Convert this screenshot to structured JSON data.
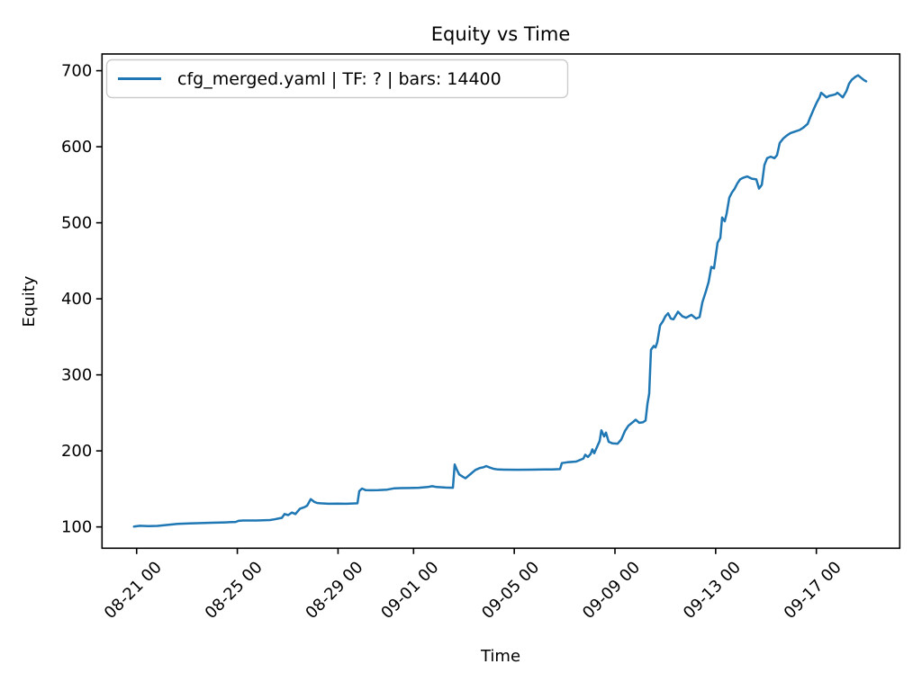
{
  "chart_data": {
    "type": "line",
    "title": "Equity vs Time",
    "xlabel": "Time",
    "ylabel": "Equity",
    "grid": false,
    "legend_position": "upper left",
    "x_ticks": [
      "08-21 00",
      "08-25 00",
      "08-29 00",
      "09-01 00",
      "09-05 00",
      "09-09 00",
      "09-13 00",
      "09-17 00"
    ],
    "y_ticks": [
      100,
      200,
      300,
      400,
      500,
      600,
      700
    ],
    "xlim": [
      "08-19 15:00",
      "09-20 07:30"
    ],
    "ylim": [
      72,
      722
    ],
    "series": [
      {
        "name": "cfg_merged.yaml | TF: ? | bars: 14400",
        "color": "#1f77b4",
        "points": [
          [
            "08-20 21:30",
            100.5
          ],
          [
            "08-21 03:00",
            101.5
          ],
          [
            "08-21 11:30",
            101.0
          ],
          [
            "08-21 20:00",
            101.3
          ],
          [
            "08-22 15:00",
            104.0
          ],
          [
            "08-23 02:00",
            104.5
          ],
          [
            "08-23 13:00",
            105.0
          ],
          [
            "08-23 23:30",
            105.5
          ],
          [
            "08-24 12:30",
            106.0
          ],
          [
            "08-24 22:30",
            106.5
          ],
          [
            "08-25 01:00",
            108.0
          ],
          [
            "08-25 05:30",
            108.5
          ],
          [
            "08-25 18:30",
            108.5
          ],
          [
            "08-26 07:15",
            109.0
          ],
          [
            "08-26 11:30",
            110.0
          ],
          [
            "08-26 18:30",
            112.0
          ],
          [
            "08-26 21:00",
            117.0
          ],
          [
            "08-27 00:30",
            115.5
          ],
          [
            "08-27 04:00",
            119.0
          ],
          [
            "08-27 07:20",
            117.0
          ],
          [
            "08-27 11:40",
            124.0
          ],
          [
            "08-27 16:00",
            126.0
          ],
          [
            "08-27 18:30",
            128.0
          ],
          [
            "08-27 22:00",
            136.5
          ],
          [
            "08-28 01:20",
            133.0
          ],
          [
            "08-28 04:00",
            131.5
          ],
          [
            "08-28 07:20",
            131.0
          ],
          [
            "08-28 15:00",
            130.5
          ],
          [
            "08-28 23:40",
            130.7
          ],
          [
            "08-29 08:15",
            130.5
          ],
          [
            "08-29 18:30",
            131.0
          ],
          [
            "08-29 20:15",
            147.0
          ],
          [
            "08-29 22:50",
            150.5
          ],
          [
            "08-30 02:15",
            148.5
          ],
          [
            "08-30 07:30",
            148.2
          ],
          [
            "08-30 14:15",
            148.5
          ],
          [
            "08-30 22:50",
            149.0
          ],
          [
            "08-31 05:45",
            150.8
          ],
          [
            "08-31 11:45",
            151.0
          ],
          [
            "08-31 20:20",
            151.2
          ],
          [
            "09-01 05:00",
            151.5
          ],
          [
            "09-01 13:30",
            152.5
          ],
          [
            "09-01 17:45",
            153.5
          ],
          [
            "09-01 22:00",
            152.5
          ],
          [
            "09-02 06:40",
            151.8
          ],
          [
            "09-02 13:30",
            151.5
          ],
          [
            "09-02 15:15",
            182.0
          ],
          [
            "09-02 17:00",
            176.0
          ],
          [
            "09-02 19:30",
            169.0
          ],
          [
            "09-02 23:00",
            166.0
          ],
          [
            "09-03 01:30",
            164.0
          ],
          [
            "09-03 06:40",
            170.0
          ],
          [
            "09-03 11:00",
            175.0
          ],
          [
            "09-03 15:15",
            177.5
          ],
          [
            "09-03 18:40",
            178.5
          ],
          [
            "09-03 21:15",
            180.0
          ],
          [
            "09-04 00:45",
            178.0
          ],
          [
            "09-04 04:10",
            176.5
          ],
          [
            "09-04 08:25",
            175.5
          ],
          [
            "09-04 14:25",
            175.3
          ],
          [
            "09-05 03:20",
            175.2
          ],
          [
            "09-05 16:10",
            175.3
          ],
          [
            "09-06 05:00",
            175.5
          ],
          [
            "09-06 12:00",
            175.5
          ],
          [
            "09-06 19:40",
            176.0
          ],
          [
            "09-06 21:20",
            184.0
          ],
          [
            "09-07 02:30",
            185.0
          ],
          [
            "09-07 11:00",
            186.0
          ],
          [
            "09-07 18:00",
            190.0
          ],
          [
            "09-07 19:40",
            195.0
          ],
          [
            "09-07 22:15",
            192.0
          ],
          [
            "09-08 00:50",
            196.0
          ],
          [
            "09-08 02:30",
            202.0
          ],
          [
            "09-08 04:15",
            197.0
          ],
          [
            "09-08 06:50",
            205.0
          ],
          [
            "09-08 09:25",
            213.0
          ],
          [
            "09-08 11:05",
            227.0
          ],
          [
            "09-08 13:40",
            219.0
          ],
          [
            "09-08 15:25",
            224.0
          ],
          [
            "09-08 18:00",
            212.0
          ],
          [
            "09-08 21:25",
            210.0
          ],
          [
            "09-09 02:35",
            209.5
          ],
          [
            "09-09 06:00",
            215.0
          ],
          [
            "09-09 09:25",
            226.0
          ],
          [
            "09-09 12:50",
            233.0
          ],
          [
            "09-09 16:20",
            237.0
          ],
          [
            "09-09 19:45",
            241.0
          ],
          [
            "09-09 23:10",
            237.0
          ],
          [
            "09-10 02:35",
            237.5
          ],
          [
            "09-10 05:10",
            240.0
          ],
          [
            "09-10 07:00",
            262.0
          ],
          [
            "09-10 08:35",
            275.0
          ],
          [
            "09-10 10:20",
            333.0
          ],
          [
            "09-10 13:00",
            338.0
          ],
          [
            "09-10 14:40",
            336.0
          ],
          [
            "09-10 16:20",
            343.0
          ],
          [
            "09-10 19:00",
            365.0
          ],
          [
            "09-10 21:30",
            370.0
          ],
          [
            "09-11 00:05",
            377.0
          ],
          [
            "09-11 02:40",
            381.0
          ],
          [
            "09-11 05:15",
            374.0
          ],
          [
            "09-11 07:50",
            373.0
          ],
          [
            "09-11 12:05",
            383.0
          ],
          [
            "09-11 16:20",
            377.0
          ],
          [
            "09-11 19:50",
            375.0
          ],
          [
            "09-12 01:00",
            379.0
          ],
          [
            "09-12 05:15",
            374.0
          ],
          [
            "09-12 08:40",
            376.0
          ],
          [
            "09-12 11:15",
            395.0
          ],
          [
            "09-12 14:40",
            410.0
          ],
          [
            "09-12 17:15",
            422.0
          ],
          [
            "09-12 19:50",
            442.0
          ],
          [
            "09-12 22:25",
            440.0
          ],
          [
            "09-13 01:50",
            474.0
          ],
          [
            "09-13 04:25",
            480.0
          ],
          [
            "09-13 06:10",
            507.0
          ],
          [
            "09-13 08:40",
            502.0
          ],
          [
            "09-13 10:25",
            512.0
          ],
          [
            "09-13 13:00",
            533.0
          ],
          [
            "09-13 15:35",
            540.0
          ],
          [
            "09-13 18:10",
            545.0
          ],
          [
            "09-13 20:45",
            552.0
          ],
          [
            "09-13 23:20",
            557.0
          ],
          [
            "09-14 02:00",
            559.0
          ],
          [
            "09-14 06:10",
            561.0
          ],
          [
            "09-14 10:30",
            558.0
          ],
          [
            "09-14 14:45",
            557.0
          ],
          [
            "09-14 17:20",
            545.0
          ],
          [
            "09-14 20:00",
            550.0
          ],
          [
            "09-14 22:30",
            576.0
          ],
          [
            "09-15 01:05",
            585.0
          ],
          [
            "09-15 04:30",
            587.0
          ],
          [
            "09-15 08:00",
            585.0
          ],
          [
            "09-15 10:30",
            589.0
          ],
          [
            "09-15 13:05",
            605.0
          ],
          [
            "09-15 16:30",
            611.0
          ],
          [
            "09-15 20:00",
            615.0
          ],
          [
            "09-15 23:20",
            618.0
          ],
          [
            "09-16 03:40",
            620.0
          ],
          [
            "09-16 08:00",
            622.0
          ],
          [
            "09-16 11:25",
            625.0
          ],
          [
            "09-16 15:40",
            630.0
          ],
          [
            "09-16 18:15",
            639.0
          ],
          [
            "09-16 21:40",
            650.0
          ],
          [
            "09-17 00:15",
            658.0
          ],
          [
            "09-17 03:00",
            665.0
          ],
          [
            "09-17 04:35",
            671.0
          ],
          [
            "09-17 07:10",
            668.0
          ],
          [
            "09-17 09:40",
            665.0
          ],
          [
            "09-17 12:20",
            667.0
          ],
          [
            "09-17 15:45",
            668.0
          ],
          [
            "09-17 18:20",
            669.0
          ],
          [
            "09-17 20:00",
            671.0
          ],
          [
            "09-17 22:35",
            668.0
          ],
          [
            "09-18 01:10",
            665.0
          ],
          [
            "09-18 04:35",
            673.0
          ],
          [
            "09-18 07:10",
            683.0
          ],
          [
            "09-18 09:45",
            688.0
          ],
          [
            "09-18 13:10",
            692.0
          ],
          [
            "09-18 15:45",
            694.0
          ],
          [
            "09-18 18:20",
            691.0
          ],
          [
            "09-18 21:00",
            688.0
          ],
          [
            "09-18 23:30",
            686.0
          ]
        ]
      }
    ]
  }
}
